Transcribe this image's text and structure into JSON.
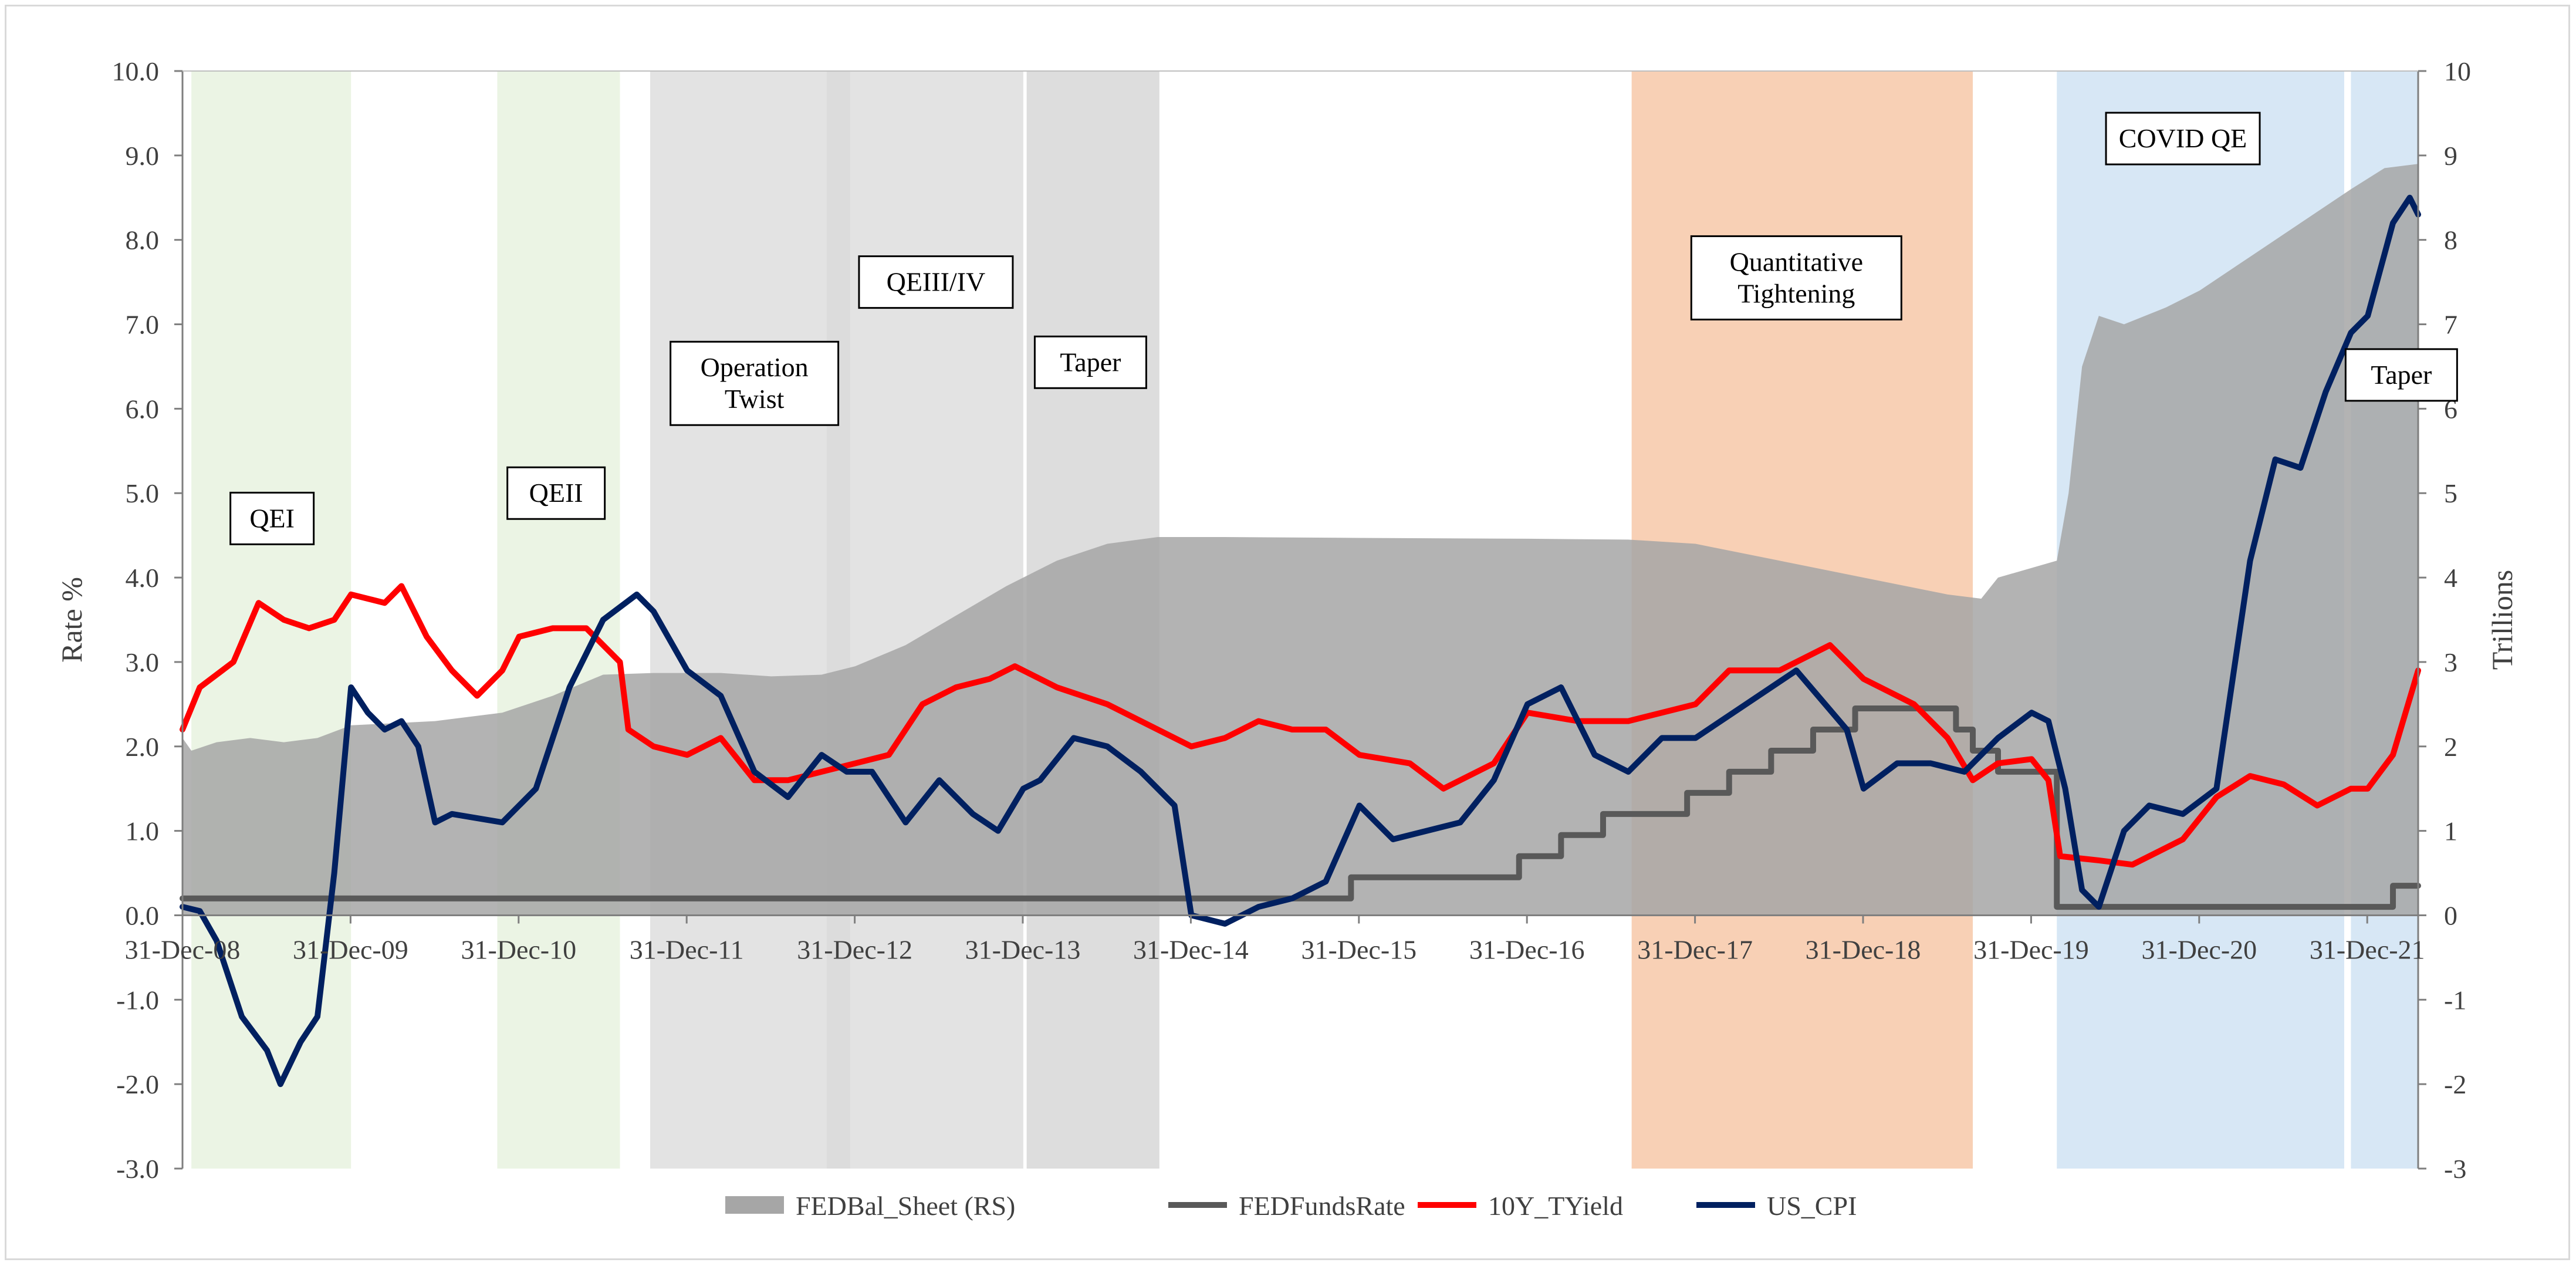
{
  "chart_data": {
    "type": "line",
    "y_left_label": "Rate %",
    "y_right_label": "Trillions",
    "y_left_range": [
      -3,
      10
    ],
    "y_right_range": [
      -3,
      10
    ],
    "y_left_ticks": [
      "10.0",
      "9.0",
      "8.0",
      "7.0",
      "6.0",
      "5.0",
      "4.0",
      "3.0",
      "2.0",
      "1.0",
      "0.0",
      "-1.0",
      "-2.0",
      "-3.0"
    ],
    "y_right_ticks": [
      "10",
      "9",
      "8",
      "7",
      "6",
      "5",
      "4",
      "3",
      "2",
      "1",
      "0",
      "-1",
      "-2",
      "-3"
    ],
    "x_range": [
      2008.997,
      2022.3
    ],
    "x_ticks": [
      {
        "label": "31-Dec-08",
        "x": 2008.997
      },
      {
        "label": "31-Dec-09",
        "x": 2009.997
      },
      {
        "label": "31-Dec-10",
        "x": 2010.997
      },
      {
        "label": "31-Dec-11",
        "x": 2011.997
      },
      {
        "label": "31-Dec-12",
        "x": 2012.997
      },
      {
        "label": "31-Dec-13",
        "x": 2013.997
      },
      {
        "label": "31-Dec-14",
        "x": 2014.997
      },
      {
        "label": "31-Dec-15",
        "x": 2015.997
      },
      {
        "label": "31-Dec-16",
        "x": 2016.997
      },
      {
        "label": "31-Dec-17",
        "x": 2017.997
      },
      {
        "label": "31-Dec-18",
        "x": 2018.997
      },
      {
        "label": "31-Dec-19",
        "x": 2019.997
      },
      {
        "label": "31-Dec-20",
        "x": 2020.997
      },
      {
        "label": "31-Dec-21",
        "x": 2021.997
      }
    ],
    "bands": [
      {
        "name": "QEI",
        "label": [
          "QEI"
        ],
        "x0": 2009.05,
        "x1": 2010.0,
        "color": "#e2f0d9",
        "opacity": 0.7,
        "label_x": 2009.53,
        "label_y": 4.7
      },
      {
        "name": "QEII",
        "label": [
          "QEII"
        ],
        "x0": 2010.87,
        "x1": 2011.6,
        "color": "#e2f0d9",
        "opacity": 0.7,
        "label_x": 2011.22,
        "label_y": 5.0
      },
      {
        "name": "Operation Twist",
        "label": [
          "Operation",
          "Twist"
        ],
        "x0": 2011.78,
        "x1": 2012.97,
        "color": "#d9d9d9",
        "opacity": 0.75,
        "label_x": 2012.4,
        "label_y": 6.3
      },
      {
        "name": "QEIII/IV",
        "label": [
          "QEIII/IV"
        ],
        "x0": 2012.83,
        "x1": 2014.0,
        "color": "#d9d9d9",
        "opacity": 0.75,
        "label_x": 2013.48,
        "label_y": 7.5
      },
      {
        "name": "Taper",
        "label": [
          "Taper"
        ],
        "x0": 2014.02,
        "x1": 2014.81,
        "color": "#d9d9d9",
        "opacity": 0.9,
        "label_x": 2014.4,
        "label_y": 6.55
      },
      {
        "name": "Quantitative Tightening",
        "label": [
          "Quantitative",
          "Tightening"
        ],
        "x0": 2017.62,
        "x1": 2019.65,
        "color": "#f4b183",
        "opacity": 0.6,
        "label_x": 2018.6,
        "label_y": 7.55
      },
      {
        "name": "COVID QE",
        "label": [
          "COVID QE"
        ],
        "x0": 2020.15,
        "x1": 2021.86,
        "color": "#bdd7ee",
        "opacity": 0.6,
        "label_x": 2020.9,
        "label_y": 9.2
      },
      {
        "name": "Taper2",
        "label": [
          "Taper"
        ],
        "x0": 2021.9,
        "x1": 2022.3,
        "color": "#bdd7ee",
        "opacity": 0.6,
        "label_x": 2022.2,
        "label_y": 6.4
      }
    ],
    "series": [
      {
        "name": "FEDBal_Sheet (RS)",
        "kind": "area",
        "axis": "right",
        "color": "#a6a6a6",
        "points": [
          [
            2008.997,
            2.1
          ],
          [
            2009.05,
            1.95
          ],
          [
            2009.2,
            2.05
          ],
          [
            2009.4,
            2.1
          ],
          [
            2009.6,
            2.05
          ],
          [
            2009.8,
            2.1
          ],
          [
            2010.0,
            2.25
          ],
          [
            2010.5,
            2.3
          ],
          [
            2010.9,
            2.4
          ],
          [
            2011.2,
            2.6
          ],
          [
            2011.5,
            2.85
          ],
          [
            2011.8,
            2.87
          ],
          [
            2012.2,
            2.87
          ],
          [
            2012.5,
            2.83
          ],
          [
            2012.8,
            2.85
          ],
          [
            2013.0,
            2.95
          ],
          [
            2013.3,
            3.2
          ],
          [
            2013.6,
            3.55
          ],
          [
            2013.9,
            3.9
          ],
          [
            2014.2,
            4.2
          ],
          [
            2014.5,
            4.4
          ],
          [
            2014.8,
            4.48
          ],
          [
            2015.2,
            4.48
          ],
          [
            2016.0,
            4.47
          ],
          [
            2017.0,
            4.46
          ],
          [
            2017.6,
            4.45
          ],
          [
            2018.0,
            4.4
          ],
          [
            2018.5,
            4.2
          ],
          [
            2019.0,
            4.0
          ],
          [
            2019.5,
            3.8
          ],
          [
            2019.7,
            3.75
          ],
          [
            2019.8,
            4.0
          ],
          [
            2020.15,
            4.2
          ],
          [
            2020.22,
            5.0
          ],
          [
            2020.3,
            6.5
          ],
          [
            2020.4,
            7.1
          ],
          [
            2020.55,
            7.0
          ],
          [
            2020.8,
            7.2
          ],
          [
            2021.0,
            7.4
          ],
          [
            2021.3,
            7.8
          ],
          [
            2021.6,
            8.2
          ],
          [
            2021.9,
            8.6
          ],
          [
            2022.1,
            8.85
          ],
          [
            2022.3,
            8.9
          ]
        ]
      },
      {
        "name": "FEDFundsRate",
        "kind": "line",
        "axis": "left",
        "color": "#595959",
        "points": [
          [
            2008.997,
            0.2
          ],
          [
            2015.95,
            0.2
          ],
          [
            2015.95,
            0.45
          ],
          [
            2016.95,
            0.45
          ],
          [
            2016.95,
            0.7
          ],
          [
            2017.2,
            0.7
          ],
          [
            2017.2,
            0.95
          ],
          [
            2017.45,
            0.95
          ],
          [
            2017.45,
            1.2
          ],
          [
            2017.95,
            1.2
          ],
          [
            2017.95,
            1.45
          ],
          [
            2018.2,
            1.45
          ],
          [
            2018.2,
            1.7
          ],
          [
            2018.45,
            1.7
          ],
          [
            2018.45,
            1.95
          ],
          [
            2018.7,
            1.95
          ],
          [
            2018.7,
            2.2
          ],
          [
            2018.95,
            2.2
          ],
          [
            2018.95,
            2.45
          ],
          [
            2019.55,
            2.45
          ],
          [
            2019.55,
            2.2
          ],
          [
            2019.65,
            2.2
          ],
          [
            2019.65,
            1.95
          ],
          [
            2019.8,
            1.95
          ],
          [
            2019.8,
            1.7
          ],
          [
            2020.15,
            1.7
          ],
          [
            2020.15,
            0.1
          ],
          [
            2022.15,
            0.1
          ],
          [
            2022.15,
            0.35
          ],
          [
            2022.3,
            0.35
          ]
        ]
      },
      {
        "name": "10Y_TYield",
        "kind": "line",
        "axis": "left",
        "color": "#ff0000",
        "points": [
          [
            2008.997,
            2.2
          ],
          [
            2009.1,
            2.7
          ],
          [
            2009.3,
            3.0
          ],
          [
            2009.45,
            3.7
          ],
          [
            2009.6,
            3.5
          ],
          [
            2009.75,
            3.4
          ],
          [
            2009.9,
            3.5
          ],
          [
            2010.0,
            3.8
          ],
          [
            2010.2,
            3.7
          ],
          [
            2010.3,
            3.9
          ],
          [
            2010.45,
            3.3
          ],
          [
            2010.6,
            2.9
          ],
          [
            2010.75,
            2.6
          ],
          [
            2010.9,
            2.9
          ],
          [
            2011.0,
            3.3
          ],
          [
            2011.2,
            3.4
          ],
          [
            2011.4,
            3.4
          ],
          [
            2011.6,
            3.0
          ],
          [
            2011.65,
            2.2
          ],
          [
            2011.8,
            2.0
          ],
          [
            2012.0,
            1.9
          ],
          [
            2012.2,
            2.1
          ],
          [
            2012.4,
            1.6
          ],
          [
            2012.6,
            1.6
          ],
          [
            2012.8,
            1.7
          ],
          [
            2013.0,
            1.8
          ],
          [
            2013.2,
            1.9
          ],
          [
            2013.4,
            2.5
          ],
          [
            2013.6,
            2.7
          ],
          [
            2013.8,
            2.8
          ],
          [
            2013.95,
            2.95
          ],
          [
            2014.2,
            2.7
          ],
          [
            2014.5,
            2.5
          ],
          [
            2014.8,
            2.2
          ],
          [
            2015.0,
            2.0
          ],
          [
            2015.2,
            2.1
          ],
          [
            2015.4,
            2.3
          ],
          [
            2015.6,
            2.2
          ],
          [
            2015.8,
            2.2
          ],
          [
            2016.0,
            1.9
          ],
          [
            2016.3,
            1.8
          ],
          [
            2016.5,
            1.5
          ],
          [
            2016.8,
            1.8
          ],
          [
            2017.0,
            2.4
          ],
          [
            2017.3,
            2.3
          ],
          [
            2017.6,
            2.3
          ],
          [
            2017.8,
            2.4
          ],
          [
            2018.0,
            2.5
          ],
          [
            2018.2,
            2.9
          ],
          [
            2018.5,
            2.9
          ],
          [
            2018.8,
            3.2
          ],
          [
            2019.0,
            2.8
          ],
          [
            2019.3,
            2.5
          ],
          [
            2019.5,
            2.1
          ],
          [
            2019.65,
            1.6
          ],
          [
            2019.8,
            1.8
          ],
          [
            2020.0,
            1.85
          ],
          [
            2020.1,
            1.6
          ],
          [
            2020.17,
            0.7
          ],
          [
            2020.4,
            0.65
          ],
          [
            2020.6,
            0.6
          ],
          [
            2020.9,
            0.9
          ],
          [
            2021.1,
            1.4
          ],
          [
            2021.3,
            1.65
          ],
          [
            2021.5,
            1.55
          ],
          [
            2021.7,
            1.3
          ],
          [
            2021.9,
            1.5
          ],
          [
            2022.0,
            1.5
          ],
          [
            2022.15,
            1.9
          ],
          [
            2022.3,
            2.9
          ]
        ]
      },
      {
        "name": "US_CPI",
        "kind": "line",
        "axis": "left",
        "color": "#002060",
        "points": [
          [
            2008.997,
            0.1
          ],
          [
            2009.1,
            0.05
          ],
          [
            2009.2,
            -0.3
          ],
          [
            2009.35,
            -1.2
          ],
          [
            2009.5,
            -1.6
          ],
          [
            2009.58,
            -2.0
          ],
          [
            2009.7,
            -1.5
          ],
          [
            2009.8,
            -1.2
          ],
          [
            2009.9,
            0.5
          ],
          [
            2010.0,
            2.7
          ],
          [
            2010.1,
            2.4
          ],
          [
            2010.2,
            2.2
          ],
          [
            2010.3,
            2.3
          ],
          [
            2010.4,
            2.0
          ],
          [
            2010.5,
            1.1
          ],
          [
            2010.6,
            1.2
          ],
          [
            2010.9,
            1.1
          ],
          [
            2011.1,
            1.5
          ],
          [
            2011.3,
            2.7
          ],
          [
            2011.5,
            3.5
          ],
          [
            2011.7,
            3.8
          ],
          [
            2011.8,
            3.6
          ],
          [
            2012.0,
            2.9
          ],
          [
            2012.2,
            2.6
          ],
          [
            2012.4,
            1.7
          ],
          [
            2012.6,
            1.4
          ],
          [
            2012.8,
            1.9
          ],
          [
            2012.95,
            1.7
          ],
          [
            2013.1,
            1.7
          ],
          [
            2013.3,
            1.1
          ],
          [
            2013.5,
            1.6
          ],
          [
            2013.7,
            1.2
          ],
          [
            2013.85,
            1.0
          ],
          [
            2014.0,
            1.5
          ],
          [
            2014.1,
            1.6
          ],
          [
            2014.3,
            2.1
          ],
          [
            2014.5,
            2.0
          ],
          [
            2014.7,
            1.7
          ],
          [
            2014.9,
            1.3
          ],
          [
            2015.0,
            0.0
          ],
          [
            2015.2,
            -0.1
          ],
          [
            2015.4,
            0.1
          ],
          [
            2015.6,
            0.2
          ],
          [
            2015.8,
            0.4
          ],
          [
            2016.0,
            1.3
          ],
          [
            2016.2,
            0.9
          ],
          [
            2016.4,
            1.0
          ],
          [
            2016.6,
            1.1
          ],
          [
            2016.8,
            1.6
          ],
          [
            2017.0,
            2.5
          ],
          [
            2017.2,
            2.7
          ],
          [
            2017.4,
            1.9
          ],
          [
            2017.6,
            1.7
          ],
          [
            2017.8,
            2.1
          ],
          [
            2018.0,
            2.1
          ],
          [
            2018.3,
            2.5
          ],
          [
            2018.6,
            2.9
          ],
          [
            2018.9,
            2.2
          ],
          [
            2019.0,
            1.5
          ],
          [
            2019.2,
            1.8
          ],
          [
            2019.4,
            1.8
          ],
          [
            2019.6,
            1.7
          ],
          [
            2019.8,
            2.1
          ],
          [
            2020.0,
            2.4
          ],
          [
            2020.1,
            2.3
          ],
          [
            2020.2,
            1.5
          ],
          [
            2020.3,
            0.3
          ],
          [
            2020.4,
            0.1
          ],
          [
            2020.55,
            1.0
          ],
          [
            2020.7,
            1.3
          ],
          [
            2020.9,
            1.2
          ],
          [
            2021.1,
            1.5
          ],
          [
            2021.3,
            4.2
          ],
          [
            2021.45,
            5.4
          ],
          [
            2021.6,
            5.3
          ],
          [
            2021.75,
            6.2
          ],
          [
            2021.9,
            6.9
          ],
          [
            2022.0,
            7.1
          ],
          [
            2022.15,
            8.2
          ],
          [
            2022.25,
            8.5
          ],
          [
            2022.3,
            8.3
          ]
        ]
      }
    ],
    "legend": {
      "placement": "bottom",
      "items": [
        {
          "name": "FEDBal_Sheet (RS)",
          "color": "#a6a6a6",
          "style": "area"
        },
        {
          "name": "FEDFundsRate",
          "color": "#595959",
          "style": "line"
        },
        {
          "name": "10Y_TYield",
          "color": "#ff0000",
          "style": "line"
        },
        {
          "name": "US_CPI",
          "color": "#002060",
          "style": "line"
        }
      ]
    }
  }
}
